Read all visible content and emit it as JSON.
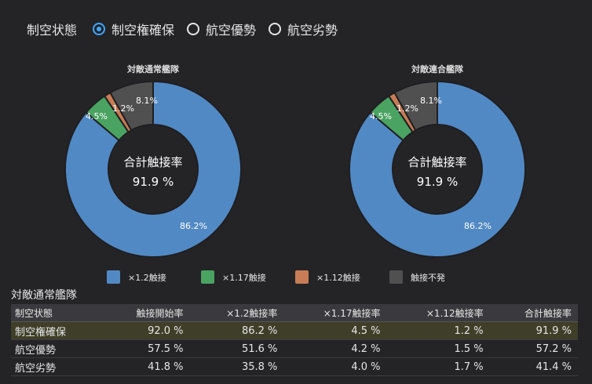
{
  "air_state": {
    "title": "制空状態",
    "options": [
      {
        "label": "制空権確保",
        "selected": true
      },
      {
        "label": "航空優勢",
        "selected": false
      },
      {
        "label": "航空劣勢",
        "selected": false
      }
    ]
  },
  "charts": [
    {
      "title": "対敵通常艦隊",
      "center_label": "合計触接率",
      "center_value": "91.9 %"
    },
    {
      "title": "対敵連合艦隊",
      "center_label": "合計触接率",
      "center_value": "91.9 %"
    }
  ],
  "chart_data": [
    {
      "type": "pie",
      "title": "対敵通常艦隊",
      "categories": [
        "×1.2触接",
        "×1.17触接",
        "×1.12触接",
        "触接不発"
      ],
      "values": [
        86.2,
        4.5,
        1.2,
        8.1
      ],
      "labels": [
        "86.2%",
        "4.5%",
        "1.2%",
        "8.1%"
      ],
      "colors": [
        "#5189c4",
        "#4aa361",
        "#c87c55",
        "#505050"
      ]
    },
    {
      "type": "pie",
      "title": "対敵連合艦隊",
      "categories": [
        "×1.2触接",
        "×1.17触接",
        "×1.12触接",
        "触接不発"
      ],
      "values": [
        86.2,
        4.5,
        1.2,
        8.1
      ],
      "labels": [
        "86.2%",
        "4.5%",
        "1.2%",
        "8.1%"
      ],
      "colors": [
        "#5189c4",
        "#4aa361",
        "#c87c55",
        "#505050"
      ]
    }
  ],
  "legend": [
    {
      "label": "×1.2触接",
      "color": "#5189c4"
    },
    {
      "label": "×1.17触接",
      "color": "#4aa361"
    },
    {
      "label": "×1.12触接",
      "color": "#c87c55"
    },
    {
      "label": "触接不発",
      "color": "#505050"
    }
  ],
  "table": {
    "title": "対敵通常艦隊",
    "headers": [
      "制空状態",
      "触接開始率",
      "×1.2触接率",
      "×1.17触接率",
      "×1.12触接率",
      "合計触接率"
    ],
    "rows": [
      [
        "制空権確保",
        "92.0 %",
        "86.2 %",
        "4.5 %",
        "1.2 %",
        "91.9 %"
      ],
      [
        "航空優勢",
        "57.5 %",
        "51.6 %",
        "4.2 %",
        "1.5 %",
        "57.2 %"
      ],
      [
        "航空劣勢",
        "41.8 %",
        "35.8 %",
        "4.0 %",
        "1.7 %",
        "41.4 %"
      ]
    ],
    "highlight_row": 0
  }
}
